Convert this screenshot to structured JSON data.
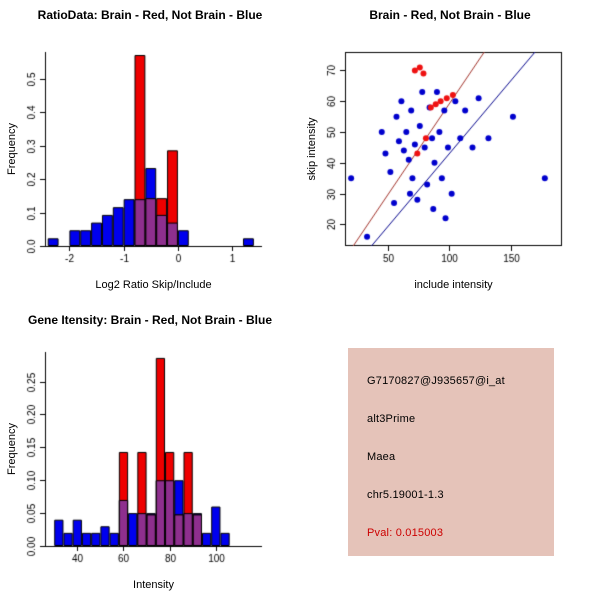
{
  "figure": {
    "bg_color": "#ffffff"
  },
  "chart_data": [
    {
      "type": "histogram",
      "title": "RatioData: Brain - Red, Not Brain - Blue",
      "xlabel": "Log2 Ratio Skip/Include",
      "ylabel": "Frequency",
      "xlim": [
        -2.45,
        1.55
      ],
      "ylim": [
        0,
        0.58
      ],
      "xticks": [
        {
          "v": -2,
          "l": "-2"
        },
        {
          "v": -1,
          "l": "-1"
        },
        {
          "v": 0,
          "l": "0"
        },
        {
          "v": 1,
          "l": "1"
        }
      ],
      "yticks": [
        {
          "v": 0,
          "l": "0.0"
        },
        {
          "v": 0.1,
          "l": "0.1"
        },
        {
          "v": 0.2,
          "l": "0.2"
        },
        {
          "v": 0.3,
          "l": "0.3"
        },
        {
          "v": 0.4,
          "l": "0.4"
        },
        {
          "v": 0.5,
          "l": "0.5"
        }
      ],
      "bin_width": 0.2,
      "overlap_color": "#8e2f8e",
      "grid": false,
      "series": [
        {
          "name": "Not Brain",
          "color": "#0000ee",
          "bins": [
            [
              -2.4,
              0.023
            ],
            [
              -2,
              0.047
            ],
            [
              -1.8,
              0.047
            ],
            [
              -1.6,
              0.07
            ],
            [
              -1.4,
              0.093
            ],
            [
              -1.2,
              0.116
            ],
            [
              -1,
              0.14
            ],
            [
              -0.8,
              0.14
            ],
            [
              -0.6,
              0.233
            ],
            [
              -0.4,
              0.093
            ],
            [
              -0.2,
              0.07
            ],
            [
              0,
              0.047
            ],
            [
              1.2,
              0.023
            ]
          ]
        },
        {
          "name": "Brain",
          "color": "#ee0000",
          "bins": [
            [
              -0.8,
              0.571
            ],
            [
              -0.6,
              0.143
            ],
            [
              -0.4,
              0.143
            ],
            [
              -0.2,
              0.286
            ]
          ]
        }
      ]
    },
    {
      "type": "scatter",
      "title": "Brain - Red, Not Brain - Blue",
      "xlabel": "include intensity",
      "ylabel": "skip intensity",
      "xlim": [
        15,
        192
      ],
      "ylim": [
        13,
        76
      ],
      "xticks": [
        {
          "v": 50,
          "l": "50"
        },
        {
          "v": 100,
          "l": "100"
        },
        {
          "v": 150,
          "l": "150"
        }
      ],
      "yticks": [
        {
          "v": 20,
          "l": "20"
        },
        {
          "v": 30,
          "l": "30"
        },
        {
          "v": 40,
          "l": "40"
        },
        {
          "v": 50,
          "l": "50"
        },
        {
          "v": 60,
          "l": "60"
        },
        {
          "v": 70,
          "l": "70"
        }
      ],
      "grid": false,
      "series": [
        {
          "name": "Not Brain",
          "color": "#0000cd",
          "points": [
            [
              20,
              35
            ],
            [
              33,
              16
            ],
            [
              45,
              50
            ],
            [
              48,
              43
            ],
            [
              52,
              37
            ],
            [
              55,
              27
            ],
            [
              57,
              55
            ],
            [
              59,
              47
            ],
            [
              61,
              60
            ],
            [
              63,
              44
            ],
            [
              65,
              50
            ],
            [
              67,
              41
            ],
            [
              68,
              30
            ],
            [
              69,
              57
            ],
            [
              70,
              35
            ],
            [
              72,
              46
            ],
            [
              74,
              28
            ],
            [
              76,
              52
            ],
            [
              78,
              63
            ],
            [
              80,
              45
            ],
            [
              82,
              33
            ],
            [
              84,
              58
            ],
            [
              86,
              48
            ],
            [
              87,
              25
            ],
            [
              88,
              40
            ],
            [
              90,
              63
            ],
            [
              92,
              50
            ],
            [
              94,
              35
            ],
            [
              96,
              57
            ],
            [
              97,
              22
            ],
            [
              99,
              45
            ],
            [
              102,
              30
            ],
            [
              105,
              60
            ],
            [
              109,
              48
            ],
            [
              113,
              57
            ],
            [
              119,
              45
            ],
            [
              124,
              61
            ],
            [
              132,
              48
            ],
            [
              152,
              55
            ],
            [
              178,
              35
            ]
          ]
        },
        {
          "name": "Brain",
          "color": "#ee1111",
          "points": [
            [
              72,
              70
            ],
            [
              76,
              71
            ],
            [
              79,
              69
            ],
            [
              85,
              58
            ],
            [
              89,
              59
            ],
            [
              93,
              60
            ],
            [
              98,
              61
            ],
            [
              74,
              43
            ],
            [
              81,
              48
            ],
            [
              103,
              62
            ]
          ]
        }
      ],
      "lines": [
        {
          "name": "brain-fit",
          "color": "#a03028",
          "from": [
            20,
            12
          ],
          "to": [
            132,
            78
          ]
        },
        {
          "name": "notbrain-fit",
          "color": "#00008b",
          "from": [
            26,
            8
          ],
          "to": [
            170,
            76
          ]
        }
      ]
    },
    {
      "type": "histogram",
      "title": "Gene Itensity: Brain - Red, Not Brain - Blue",
      "xlabel": "Intensity",
      "ylabel": "Frequency",
      "xlim": [
        26,
        120
      ],
      "ylim": [
        0,
        0.295
      ],
      "xticks": [
        {
          "v": 40,
          "l": "40"
        },
        {
          "v": 60,
          "l": "60"
        },
        {
          "v": 80,
          "l": "80"
        },
        {
          "v": 100,
          "l": "100"
        }
      ],
      "yticks": [
        {
          "v": 0,
          "l": "0.00"
        },
        {
          "v": 0.05,
          "l": "0.05"
        },
        {
          "v": 0.1,
          "l": "0.10"
        },
        {
          "v": 0.15,
          "l": "0.15"
        },
        {
          "v": 0.2,
          "l": "0.20"
        },
        {
          "v": 0.25,
          "l": "0.25"
        }
      ],
      "bin_width": 4,
      "overlap_color": "#8e2f8e",
      "grid": false,
      "series": [
        {
          "name": "Not Brain",
          "color": "#0000ee",
          "bins": [
            [
              30,
              0.04
            ],
            [
              34,
              0.02
            ],
            [
              38,
              0.04
            ],
            [
              42,
              0.02
            ],
            [
              46,
              0.02
            ],
            [
              50,
              0.03
            ],
            [
              54,
              0.02
            ],
            [
              58,
              0.07
            ],
            [
              62,
              0.05
            ],
            [
              66,
              0.05
            ],
            [
              70,
              0.05
            ],
            [
              74,
              0.1
            ],
            [
              78,
              0.1
            ],
            [
              82,
              0.1
            ],
            [
              86,
              0.05
            ],
            [
              90,
              0.05
            ],
            [
              94,
              0.02
            ],
            [
              98,
              0.06
            ],
            [
              102,
              0.02
            ]
          ]
        },
        {
          "name": "Brain",
          "color": "#ee0000",
          "bins": [
            [
              58,
              0.143
            ],
            [
              66,
              0.143
            ],
            [
              70,
              0.048
            ],
            [
              74,
              0.286
            ],
            [
              78,
              0.143
            ],
            [
              82,
              0.048
            ],
            [
              86,
              0.143
            ],
            [
              90,
              0.048
            ]
          ]
        }
      ]
    }
  ],
  "info_panel": {
    "bg_color": "#e5c3b9",
    "lines": [
      {
        "text": "G7170827@J935657@i_at",
        "color": "#000000"
      },
      {
        "text": "alt3Prime",
        "color": "#000000"
      },
      {
        "text": "Maea",
        "color": "#000000"
      },
      {
        "text": "chr5.19001-1.3",
        "color": "#000000"
      },
      {
        "text": "Pval: 0.015003",
        "color": "#cc0000"
      }
    ]
  }
}
